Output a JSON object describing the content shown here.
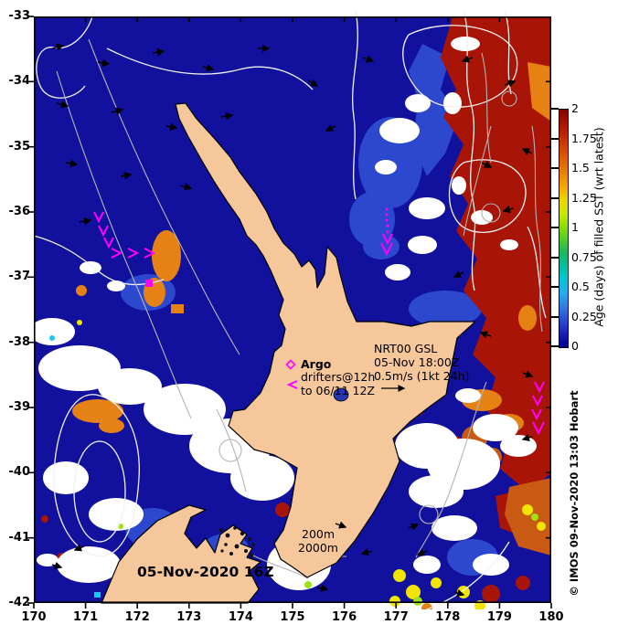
{
  "axes": {
    "x_ticks": [
      "170",
      "171",
      "172",
      "173",
      "174",
      "175",
      "176",
      "177",
      "178",
      "179",
      "180"
    ],
    "y_ticks": [
      "-33",
      "-34",
      "-35",
      "-36",
      "-37",
      "-38",
      "-39",
      "-40",
      "-41",
      "-42"
    ]
  },
  "colorbar": {
    "title": "Age (days) of filled SST (wrt latest)",
    "tick_labels": [
      "2",
      "1.75",
      "1.5",
      "1.25",
      "1",
      "0.75",
      "0.5",
      "0.25",
      "0"
    ],
    "gradient_top": "#860000",
    "gradient_bottom": "#00008b"
  },
  "annotations": {
    "argo": "Argo",
    "drifters_line1": "drifters@12h",
    "drifters_line2": "to 06/11 12Z",
    "gsl_line1": "NRT00 GSL",
    "gsl_line2": "05-Nov 18:00Z",
    "gsl_line3": "0.5m/s (1kt 24h)",
    "isobath_200": "200m",
    "isobath_2000": "2000m",
    "timestamp": "05-Nov-2020 16Z",
    "credit": "© IMOS 09-Nov-2020 13:03 Hobart"
  },
  "icons": {
    "argo_marker": "magenta-open-diamond",
    "drifter_marker": "magenta-left-arrowhead",
    "current_vector": "black-arrow",
    "velocity_scale": "black-arrow-right"
  },
  "colors": {
    "ocean_age_new": "#11119e",
    "ocean_age_old": "#a81405",
    "cloud_no_data": "#ffffff",
    "land": "#f5c79b",
    "gsl_contour": "#f2f2f2",
    "bathymetry_contour": "#b4b4b4",
    "drifter_track": "#ff00ff"
  }
}
